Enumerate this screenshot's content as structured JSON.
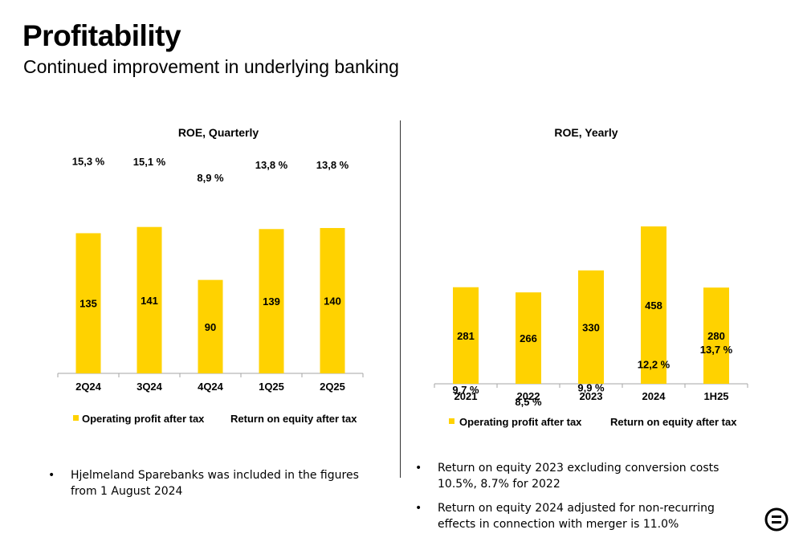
{
  "header": {
    "title": "Profitability",
    "subtitle": "Continued improvement in underlying banking"
  },
  "colors": {
    "bar": "#FFD200",
    "axis": "#A6A6A6",
    "text": "#000000"
  },
  "chart_data": [
    {
      "type": "bar",
      "title": "ROE, Quarterly",
      "categories": [
        "2Q24",
        "3Q24",
        "4Q24",
        "1Q25",
        "2Q25"
      ],
      "series": [
        {
          "name": "Operating profit after tax",
          "values": [
            135,
            141,
            90,
            139,
            140
          ]
        },
        {
          "name": "Return on equity after tax",
          "values": [
            15.3,
            15.1,
            8.9,
            13.8,
            13.8
          ]
        }
      ],
      "value_labels": [
        "135",
        "141",
        "90",
        "139",
        "140"
      ],
      "roe_labels": [
        "15,3 %",
        "15,1 %",
        "8,9 %",
        "13,8 %",
        "13,8 %"
      ],
      "legend": [
        "Operating profit after tax",
        "Return on equity after tax"
      ],
      "legend_position": "bottom",
      "grid": false
    },
    {
      "type": "bar",
      "title": "ROE, Yearly",
      "categories": [
        "2021",
        "2022",
        "2023",
        "2024",
        "1H25"
      ],
      "series": [
        {
          "name": "Operating profit after tax",
          "values": [
            281,
            266,
            330,
            458,
            280
          ]
        },
        {
          "name": "Return on equity after tax",
          "values": [
            9.7,
            8.5,
            9.9,
            12.2,
            13.7
          ]
        }
      ],
      "value_labels": [
        "281",
        "266",
        "330",
        "458",
        "280"
      ],
      "roe_labels": [
        "9,7 %",
        "8,5 %",
        "9,9 %",
        "12,2 %",
        "13,7 %"
      ],
      "legend": [
        "Operating profit after tax",
        "Return on equity after tax"
      ],
      "legend_position": "bottom",
      "grid": false
    }
  ],
  "notes": {
    "left": [
      "Hjelmeland Sparebanks was included in the figures from 1 August 2024"
    ],
    "right": [
      "Return on equity 2023 excluding conversion costs 10.5%, 8.7% for 2022",
      "Return on equity 2024 adjusted for non-recurring effects in connection with merger is 11.0%"
    ]
  },
  "logo": {
    "icon": "bank-logo-icon"
  }
}
